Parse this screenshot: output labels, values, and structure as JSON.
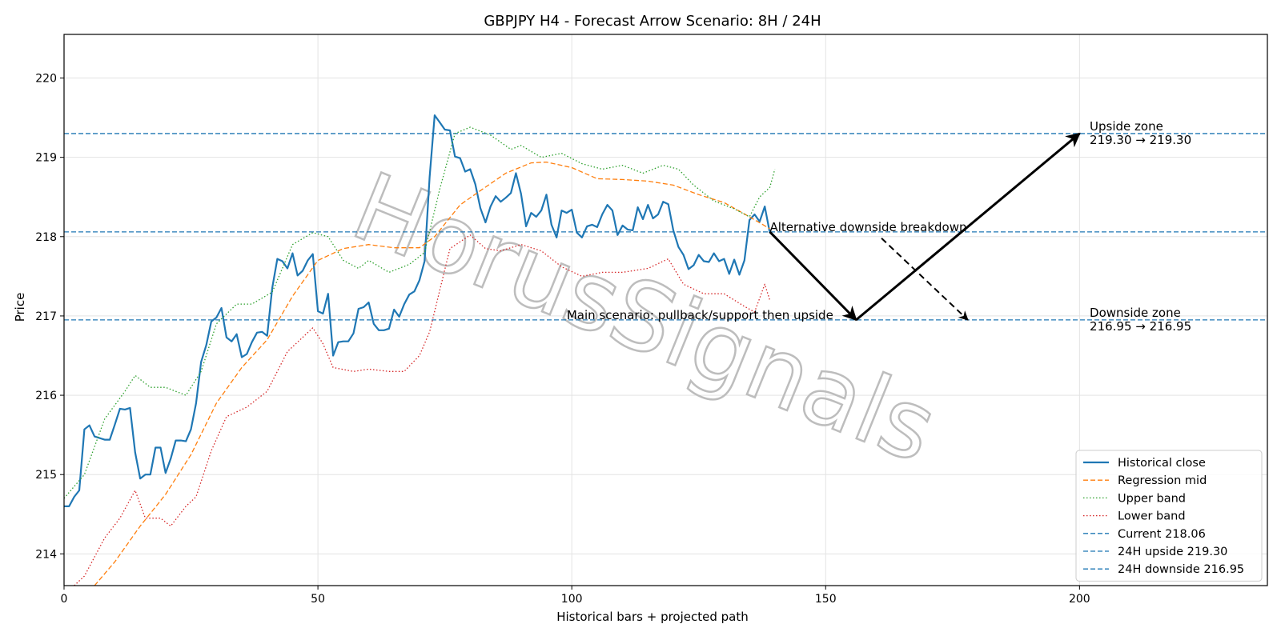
{
  "chart_data": {
    "type": "line",
    "title": "GBPJPY H4 - Forecast Arrow Scenario: 8H / 24H",
    "xlabel": "Historical bars + projected path",
    "ylabel": "Price",
    "xlim": [
      0,
      237
    ],
    "ylim": [
      213.6,
      220.55
    ],
    "xticks": [
      0,
      50,
      100,
      150,
      200
    ],
    "yticks": [
      214,
      215,
      216,
      217,
      218,
      219,
      220
    ],
    "grid": true,
    "legend_position": "lower-right",
    "watermark": "HorusSignals",
    "series": [
      {
        "name": "Historical close",
        "color": "#1f77b4",
        "style": "solid",
        "x_start": 0,
        "values": [
          214.6,
          214.6,
          214.72,
          214.8,
          215.57,
          215.62,
          215.48,
          215.46,
          215.44,
          215.44,
          215.63,
          215.83,
          215.82,
          215.84,
          215.28,
          214.95,
          215.0,
          215.0,
          215.34,
          215.34,
          215.02,
          215.2,
          215.43,
          215.43,
          215.42,
          215.57,
          215.9,
          216.42,
          216.63,
          216.93,
          216.98,
          217.1,
          216.73,
          216.68,
          216.77,
          216.48,
          216.52,
          216.67,
          216.79,
          216.8,
          216.75,
          217.35,
          217.72,
          217.69,
          217.6,
          217.79,
          217.51,
          217.57,
          217.7,
          217.78,
          217.06,
          217.03,
          217.28,
          216.5,
          216.67,
          216.68,
          216.68,
          216.78,
          217.09,
          217.11,
          217.17,
          216.9,
          216.82,
          216.82,
          216.84,
          217.08,
          216.99,
          217.15,
          217.27,
          217.31,
          217.45,
          217.69,
          218.75,
          219.53,
          219.44,
          219.35,
          219.34,
          219.01,
          218.99,
          218.82,
          218.85,
          218.66,
          218.36,
          218.18,
          218.38,
          218.51,
          218.44,
          218.49,
          218.55,
          218.8,
          218.54,
          218.13,
          218.3,
          218.25,
          218.33,
          218.53,
          218.15,
          217.99,
          218.33,
          218.3,
          218.34,
          218.05,
          217.99,
          218.13,
          218.15,
          218.12,
          218.28,
          218.4,
          218.33,
          218.02,
          218.14,
          218.09,
          218.08,
          218.37,
          218.22,
          218.4,
          218.23,
          218.28,
          218.44,
          218.41,
          218.08,
          217.87,
          217.77,
          217.59,
          217.64,
          217.77,
          217.69,
          217.68,
          217.79,
          217.69,
          217.72,
          217.53,
          217.71,
          217.52,
          217.7,
          218.21,
          218.28,
          218.19,
          218.38,
          218.05
        ]
      },
      {
        "name": "Regression mid",
        "color": "#ff7f0e",
        "style": "dashed",
        "x_start": 0,
        "points": [
          [
            6,
            213.6
          ],
          [
            10,
            213.9
          ],
          [
            15,
            214.35
          ],
          [
            20,
            214.75
          ],
          [
            25,
            215.25
          ],
          [
            30,
            215.9
          ],
          [
            35,
            216.35
          ],
          [
            40,
            216.7
          ],
          [
            45,
            217.25
          ],
          [
            50,
            217.7
          ],
          [
            55,
            217.85
          ],
          [
            60,
            217.9
          ],
          [
            65,
            217.86
          ],
          [
            70,
            217.86
          ],
          [
            73,
            218.0
          ],
          [
            78,
            218.4
          ],
          [
            82,
            218.58
          ],
          [
            87,
            218.8
          ],
          [
            92,
            218.93
          ],
          [
            95,
            218.94
          ],
          [
            100,
            218.87
          ],
          [
            105,
            218.73
          ],
          [
            110,
            218.72
          ],
          [
            115,
            218.7
          ],
          [
            120,
            218.65
          ],
          [
            125,
            218.53
          ],
          [
            130,
            218.43
          ],
          [
            135,
            218.25
          ],
          [
            139,
            218.1
          ]
        ]
      },
      {
        "name": "Upper band",
        "color": "#2ca02c",
        "style": "dotted",
        "x_start": 0,
        "points": [
          [
            0,
            214.7
          ],
          [
            4,
            215.0
          ],
          [
            8,
            215.7
          ],
          [
            12,
            216.05
          ],
          [
            14,
            216.25
          ],
          [
            17,
            216.1
          ],
          [
            20,
            216.1
          ],
          [
            24,
            216.0
          ],
          [
            27,
            216.3
          ],
          [
            30,
            216.9
          ],
          [
            34,
            217.15
          ],
          [
            37,
            217.15
          ],
          [
            41,
            217.3
          ],
          [
            45,
            217.9
          ],
          [
            49,
            218.05
          ],
          [
            52,
            218.0
          ],
          [
            55,
            217.7
          ],
          [
            58,
            217.6
          ],
          [
            60,
            217.7
          ],
          [
            64,
            217.55
          ],
          [
            68,
            217.65
          ],
          [
            71,
            217.8
          ],
          [
            74,
            218.6
          ],
          [
            77,
            219.3
          ],
          [
            80,
            219.38
          ],
          [
            84,
            219.28
          ],
          [
            88,
            219.1
          ],
          [
            90,
            219.15
          ],
          [
            94,
            219.0
          ],
          [
            98,
            219.05
          ],
          [
            102,
            218.92
          ],
          [
            106,
            218.85
          ],
          [
            110,
            218.9
          ],
          [
            114,
            218.8
          ],
          [
            118,
            218.9
          ],
          [
            121,
            218.85
          ],
          [
            124,
            218.65
          ],
          [
            128,
            218.45
          ],
          [
            132,
            218.35
          ],
          [
            135,
            218.25
          ],
          [
            137,
            218.5
          ],
          [
            139,
            218.62
          ],
          [
            140,
            218.85
          ]
        ]
      },
      {
        "name": "Lower band",
        "color": "#d62728",
        "style": "dotted",
        "x_start": 0,
        "points": [
          [
            2,
            213.6
          ],
          [
            4,
            213.72
          ],
          [
            8,
            214.2
          ],
          [
            11,
            214.45
          ],
          [
            14,
            214.8
          ],
          [
            16,
            214.45
          ],
          [
            19,
            214.45
          ],
          [
            21,
            214.35
          ],
          [
            24,
            214.6
          ],
          [
            26,
            214.72
          ],
          [
            29,
            215.3
          ],
          [
            32,
            215.73
          ],
          [
            36,
            215.85
          ],
          [
            40,
            216.05
          ],
          [
            44,
            216.55
          ],
          [
            49,
            216.85
          ],
          [
            51,
            216.65
          ],
          [
            53,
            216.35
          ],
          [
            57,
            216.3
          ],
          [
            60,
            216.33
          ],
          [
            64,
            216.3
          ],
          [
            67,
            216.3
          ],
          [
            70,
            216.5
          ],
          [
            72,
            216.8
          ],
          [
            76,
            217.85
          ],
          [
            80,
            218.02
          ],
          [
            83,
            217.85
          ],
          [
            86,
            217.82
          ],
          [
            90,
            217.9
          ],
          [
            94,
            217.82
          ],
          [
            98,
            217.62
          ],
          [
            102,
            217.5
          ],
          [
            106,
            217.55
          ],
          [
            110,
            217.55
          ],
          [
            115,
            217.6
          ],
          [
            119,
            217.72
          ],
          [
            122,
            217.4
          ],
          [
            126,
            217.28
          ],
          [
            130,
            217.28
          ],
          [
            134,
            217.12
          ],
          [
            136,
            217.05
          ],
          [
            138,
            217.4
          ],
          [
            139,
            217.2
          ]
        ]
      }
    ],
    "reference_lines": [
      {
        "name": "Current 218.06",
        "value": 218.06,
        "color": "#1f77b4",
        "style": "dashed"
      },
      {
        "name": "24H upside 219.30",
        "value": 219.3,
        "color": "#1f77b4",
        "style": "dashed"
      },
      {
        "name": "24H downside 216.95",
        "value": 216.95,
        "color": "#1f77b4",
        "style": "dashed"
      }
    ],
    "arrows": [
      {
        "id": "main-leg-1",
        "from": [
          139,
          218.06
        ],
        "to": [
          156,
          216.95
        ],
        "style": "solid"
      },
      {
        "id": "main-leg-2",
        "from": [
          156,
          216.95
        ],
        "to": [
          200,
          219.3
        ],
        "style": "solid"
      },
      {
        "id": "alt-leg",
        "from": [
          161,
          217.98
        ],
        "to": [
          178,
          216.95
        ],
        "style": "dashed"
      }
    ],
    "annotations": [
      {
        "id": "main-scenario",
        "text": "Main scenario: pullback/support then upside",
        "x": 99,
        "y": 216.95
      },
      {
        "id": "alt-scenario",
        "text": "Alternative downside breakdown",
        "x": 139,
        "y": 218.06
      },
      {
        "id": "upside-zone",
        "lines": [
          "Upside zone",
          "219.30 → 219.30"
        ],
        "x": 202,
        "y": 219.3
      },
      {
        "id": "downside-zone",
        "lines": [
          "Downside zone",
          "216.95 → 216.95"
        ],
        "x": 202,
        "y": 216.95
      }
    ]
  }
}
